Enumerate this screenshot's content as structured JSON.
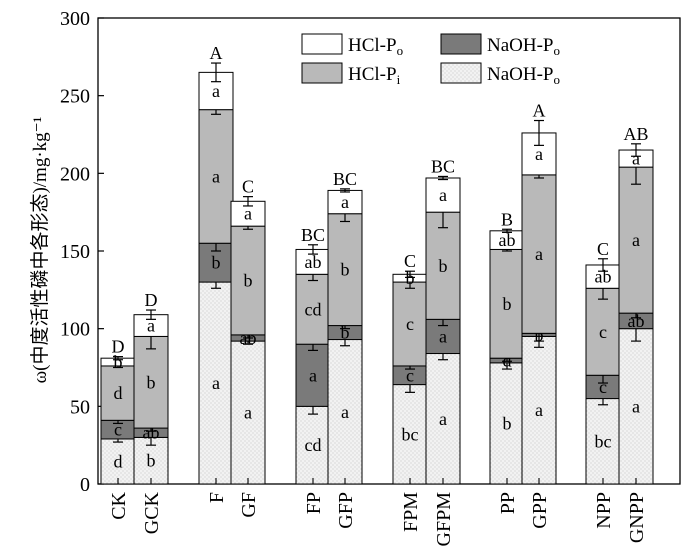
{
  "chart_data": {
    "type": "bar",
    "stacked": true,
    "ylabel": "ω(中度活性磷中各形态)/mg·kg⁻¹",
    "ylim": [
      0,
      300
    ],
    "yticks": [
      0,
      50,
      100,
      150,
      200,
      250,
      300
    ],
    "legend_position": "top-right",
    "categories": [
      "CK",
      "GCK",
      "F",
      "GF",
      "FP",
      "GFP",
      "FPM",
      "GFPM",
      "PP",
      "GPP",
      "NPP",
      "GNPP"
    ],
    "series": [
      {
        "name": "NaOH-P",
        "name_sub": "o",
        "color": "#ededed",
        "pattern": "dots",
        "values": [
          29,
          30,
          130,
          92,
          50,
          93,
          64,
          84,
          78,
          95,
          55,
          100
        ],
        "errors": [
          2,
          5,
          4,
          2,
          5,
          4,
          5,
          4,
          4,
          3,
          4,
          8
        ],
        "labels": [
          "d",
          "b",
          "a",
          "a",
          "cd",
          "a",
          "bc",
          "a",
          "b",
          "a",
          "bc",
          "a"
        ]
      },
      {
        "name": "NaOH-P",
        "name_sub": "o",
        "color": "#7a7a7a",
        "pattern": "none",
        "values": [
          12,
          6,
          25,
          4,
          40,
          9,
          12,
          22,
          3,
          2,
          15,
          10
        ],
        "errors": [
          2,
          2,
          5,
          2,
          4,
          2,
          2,
          4,
          2,
          9,
          5,
          3
        ],
        "labels": [
          "c",
          "ab",
          "b",
          "ab",
          "a",
          "b",
          "c",
          "a",
          "d",
          "b",
          "c",
          "ab"
        ]
      },
      {
        "name": "HCl-P",
        "name_sub": "i",
        "color": "#b9b9b9",
        "pattern": "none",
        "values": [
          35,
          59,
          86,
          70,
          45,
          72,
          54,
          69,
          70,
          102,
          56,
          94
        ],
        "errors": [
          1,
          8,
          3,
          2,
          4,
          5,
          4,
          10,
          1,
          2,
          7,
          11
        ],
        "labels": [
          "d",
          "b",
          "a",
          "b",
          "cd",
          "b",
          "c",
          "b",
          "b",
          "a",
          "c",
          "a"
        ]
      },
      {
        "name": "HCl-P",
        "name_sub": "o",
        "color": "#ffffff",
        "pattern": "none",
        "values": [
          5,
          14,
          24,
          16,
          16,
          15,
          5,
          22,
          12,
          27,
          15,
          11
        ],
        "errors": [
          1,
          3,
          6,
          3,
          3,
          1,
          2,
          1,
          1,
          8,
          4,
          4
        ],
        "labels": [
          "b",
          "a",
          "a",
          "a",
          "ab",
          "a",
          "b",
          "a",
          "ab",
          "a",
          "ab",
          "a"
        ]
      }
    ],
    "top_labels": [
      "D",
      "D",
      "A",
      "C",
      "BC",
      "BC",
      "C",
      "BC",
      "B",
      "A",
      "C",
      "AB"
    ]
  }
}
